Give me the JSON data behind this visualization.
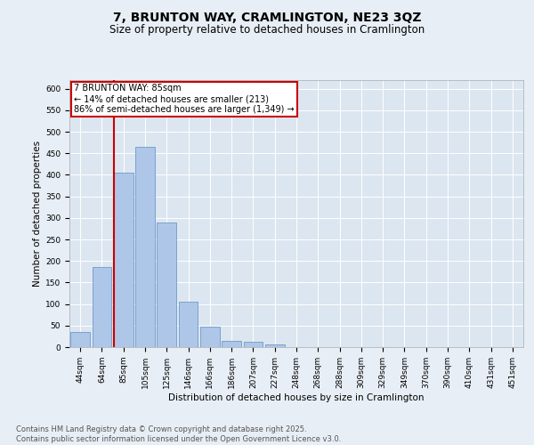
{
  "title_line1": "7, BRUNTON WAY, CRAMLINGTON, NE23 3QZ",
  "title_line2": "Size of property relative to detached houses in Cramlington",
  "xlabel": "Distribution of detached houses by size in Cramlington",
  "ylabel": "Number of detached properties",
  "categories": [
    "44sqm",
    "64sqm",
    "85sqm",
    "105sqm",
    "125sqm",
    "146sqm",
    "166sqm",
    "186sqm",
    "207sqm",
    "227sqm",
    "248sqm",
    "268sqm",
    "288sqm",
    "309sqm",
    "329sqm",
    "349sqm",
    "370sqm",
    "390sqm",
    "410sqm",
    "431sqm",
    "451sqm"
  ],
  "values": [
    35,
    185,
    405,
    465,
    290,
    105,
    48,
    15,
    13,
    7,
    1,
    1,
    0,
    1,
    0,
    0,
    0,
    1,
    0,
    1,
    0
  ],
  "bar_color": "#aec6e8",
  "bar_edge_color": "#5a8fc2",
  "red_line_index": 2,
  "annotation_text": "7 BRUNTON WAY: 85sqm\n← 14% of detached houses are smaller (213)\n86% of semi-detached houses are larger (1,349) →",
  "annotation_box_color": "#ffffff",
  "annotation_edge_color": "#cc0000",
  "red_line_color": "#cc0000",
  "ylim": [
    0,
    620
  ],
  "yticks": [
    0,
    50,
    100,
    150,
    200,
    250,
    300,
    350,
    400,
    450,
    500,
    550,
    600
  ],
  "footer_text": "Contains HM Land Registry data © Crown copyright and database right 2025.\nContains public sector information licensed under the Open Government Licence v3.0.",
  "background_color": "#e8eef5",
  "plot_background_color": "#dce6f0",
  "title_fontsize": 10,
  "subtitle_fontsize": 8.5,
  "axis_label_fontsize": 7.5,
  "tick_fontsize": 6.5,
  "footer_fontsize": 6,
  "annotation_fontsize": 7
}
